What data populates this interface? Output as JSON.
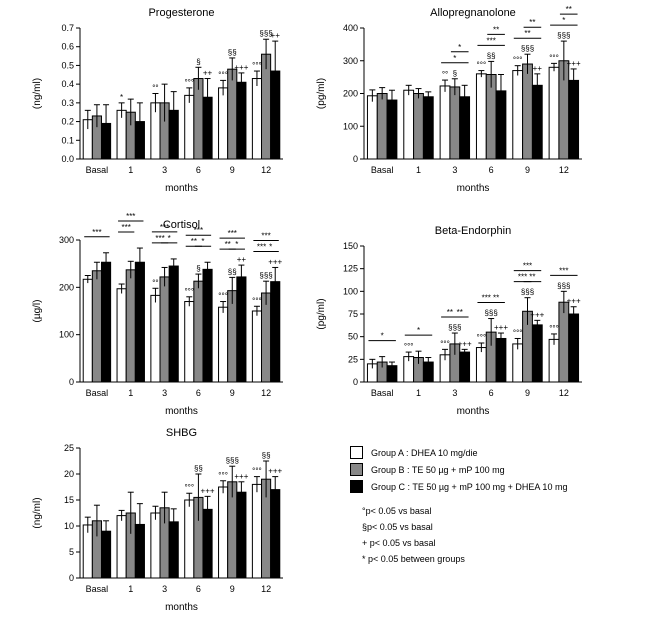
{
  "chart_data": [
    {
      "type": "bar",
      "id": "progesterone",
      "title": "Progesterone",
      "ylabel": "(ng/ml)",
      "xlabel": "months",
      "categories": [
        "Basal",
        "1",
        "3",
        "6",
        "9",
        "12"
      ],
      "ylim": [
        0,
        0.7
      ],
      "yticks": [
        "0.0",
        "0.1",
        "0.2",
        "0.3",
        "0.4",
        "0.5",
        "0.6",
        "0.7"
      ],
      "series": [
        {
          "name": "Group A",
          "values": [
            0.21,
            0.26,
            0.3,
            0.34,
            0.38,
            0.43
          ],
          "errors": [
            0.05,
            0.04,
            0.05,
            0.04,
            0.04,
            0.04
          ]
        },
        {
          "name": "Group B",
          "values": [
            0.23,
            0.25,
            0.3,
            0.43,
            0.48,
            0.56
          ],
          "errors": [
            0.06,
            0.07,
            0.1,
            0.06,
            0.06,
            0.08
          ]
        },
        {
          "name": "Group C",
          "values": [
            0.19,
            0.2,
            0.26,
            0.33,
            0.41,
            0.47
          ],
          "errors": [
            0.1,
            0.1,
            0.1,
            0.1,
            0.05,
            0.16
          ]
        }
      ],
      "annotations": [
        {
          "cat": 1,
          "bar": 0,
          "text": "*"
        },
        {
          "cat": 2,
          "bar": 0,
          "text": "°°"
        },
        {
          "cat": 3,
          "bar": 0,
          "text": "°°°"
        },
        {
          "cat": 3,
          "bar": 1,
          "text": "§"
        },
        {
          "cat": 3,
          "bar": 2,
          "text": "++"
        },
        {
          "cat": 4,
          "bar": 0,
          "text": "°°°"
        },
        {
          "cat": 4,
          "bar": 1,
          "text": "§§"
        },
        {
          "cat": 4,
          "bar": 2,
          "text": "+++"
        },
        {
          "cat": 5,
          "bar": 0,
          "text": "°°°"
        },
        {
          "cat": 5,
          "bar": 1,
          "text": "§§§"
        },
        {
          "cat": 5,
          "bar": 2,
          "text": "++"
        }
      ],
      "brackets": []
    },
    {
      "type": "bar",
      "id": "allopregnanolone",
      "title": "Allopregnanolone",
      "ylabel": "(pg/ml)",
      "xlabel": "months",
      "categories": [
        "Basal",
        "1",
        "3",
        "6",
        "9",
        "12"
      ],
      "ylim": [
        0,
        400
      ],
      "yticks": [
        "0",
        "100",
        "200",
        "300",
        "400"
      ],
      "series": [
        {
          "name": "Group A",
          "values": [
            193,
            210,
            223,
            260,
            270,
            280
          ],
          "errors": [
            18,
            15,
            18,
            10,
            15,
            12
          ]
        },
        {
          "name": "Group B",
          "values": [
            200,
            200,
            220,
            258,
            290,
            300
          ],
          "errors": [
            18,
            15,
            25,
            40,
            30,
            60
          ]
        },
        {
          "name": "Group C",
          "values": [
            180,
            190,
            190,
            208,
            225,
            240
          ],
          "errors": [
            30,
            15,
            35,
            50,
            35,
            35
          ]
        }
      ],
      "annotations": [
        {
          "cat": 2,
          "bar": 0,
          "text": "°°"
        },
        {
          "cat": 2,
          "bar": 1,
          "text": "§"
        },
        {
          "cat": 3,
          "bar": 0,
          "text": "°°°"
        },
        {
          "cat": 3,
          "bar": 1,
          "text": "§§"
        },
        {
          "cat": 4,
          "bar": 0,
          "text": "°°°"
        },
        {
          "cat": 4,
          "bar": 1,
          "text": "§§§"
        },
        {
          "cat": 4,
          "bar": 2,
          "text": "++"
        },
        {
          "cat": 5,
          "bar": 0,
          "text": "°°°"
        },
        {
          "cat": 5,
          "bar": 1,
          "text": "§§§"
        },
        {
          "cat": 5,
          "bar": 2,
          "text": "+++"
        }
      ],
      "brackets": [
        {
          "cat": 2,
          "from": 0,
          "to": 2,
          "level": 0,
          "text": "*"
        },
        {
          "cat": 2,
          "from": 1,
          "to": 2,
          "level": 1,
          "text": "*"
        },
        {
          "cat": 3,
          "from": 0,
          "to": 2,
          "level": 0,
          "text": "***"
        },
        {
          "cat": 3,
          "from": 1,
          "to": 2,
          "level": 1,
          "text": "**"
        },
        {
          "cat": 4,
          "from": 0,
          "to": 2,
          "level": 0,
          "text": "**"
        },
        {
          "cat": 4,
          "from": 1,
          "to": 2,
          "level": 1,
          "text": "**"
        },
        {
          "cat": 5,
          "from": 0,
          "to": 2,
          "level": 0,
          "text": "*"
        },
        {
          "cat": 5,
          "from": 1,
          "to": 2,
          "level": 1,
          "text": "**"
        }
      ]
    },
    {
      "type": "bar",
      "id": "cortisol",
      "title": "Cortisol",
      "ylabel": "(µg/l)",
      "xlabel": "months",
      "categories": [
        "Basal",
        "1",
        "3",
        "6",
        "9",
        "12"
      ],
      "ylim": [
        0,
        300
      ],
      "yticks": [
        "0",
        "100",
        "200",
        "300"
      ],
      "series": [
        {
          "name": "Group A",
          "values": [
            217,
            197,
            183,
            170,
            158,
            150
          ],
          "errors": [
            8,
            10,
            15,
            10,
            12,
            10
          ]
        },
        {
          "name": "Group B",
          "values": [
            235,
            237,
            222,
            213,
            193,
            188
          ],
          "errors": [
            18,
            18,
            20,
            15,
            28,
            25
          ]
        },
        {
          "name": "Group C",
          "values": [
            253,
            253,
            245,
            238,
            222,
            212
          ],
          "errors": [
            20,
            30,
            15,
            15,
            25,
            30
          ]
        }
      ],
      "annotations": [
        {
          "cat": 2,
          "bar": 0,
          "text": "°°"
        },
        {
          "cat": 3,
          "bar": 0,
          "text": "°°°"
        },
        {
          "cat": 3,
          "bar": 1,
          "text": "§"
        },
        {
          "cat": 4,
          "bar": 0,
          "text": "°°°"
        },
        {
          "cat": 4,
          "bar": 1,
          "text": "§§"
        },
        {
          "cat": 4,
          "bar": 2,
          "text": "++"
        },
        {
          "cat": 5,
          "bar": 0,
          "text": "°°°"
        },
        {
          "cat": 5,
          "bar": 1,
          "text": "§§§"
        },
        {
          "cat": 5,
          "bar": 2,
          "text": "+++"
        }
      ],
      "brackets": [
        {
          "cat": 0,
          "from": 0,
          "to": 2,
          "level": 0,
          "text": "***"
        },
        {
          "cat": 1,
          "from": 0,
          "to": 2,
          "level": 1,
          "text": "***"
        },
        {
          "cat": 1,
          "from": 0,
          "to": 1,
          "level": 0,
          "text": "***"
        },
        {
          "cat": 2,
          "from": 0,
          "to": 2,
          "level": 1,
          "text": "***"
        },
        {
          "cat": 2,
          "from": 0,
          "to": 1,
          "level": 0,
          "text": "***"
        },
        {
          "cat": 2,
          "from": 1,
          "to": 2,
          "level": 0,
          "text": "*"
        },
        {
          "cat": 3,
          "from": 0,
          "to": 2,
          "level": 1,
          "text": "***"
        },
        {
          "cat": 3,
          "from": 0,
          "to": 1,
          "level": 0,
          "text": "**"
        },
        {
          "cat": 3,
          "from": 1,
          "to": 2,
          "level": 0,
          "text": "*"
        },
        {
          "cat": 4,
          "from": 0,
          "to": 2,
          "level": 1,
          "text": "***"
        },
        {
          "cat": 4,
          "from": 0,
          "to": 1,
          "level": 0,
          "text": "**"
        },
        {
          "cat": 4,
          "from": 1,
          "to": 2,
          "level": 0,
          "text": "*"
        },
        {
          "cat": 5,
          "from": 0,
          "to": 2,
          "level": 1,
          "text": "***"
        },
        {
          "cat": 5,
          "from": 0,
          "to": 1,
          "level": 0,
          "text": "***"
        },
        {
          "cat": 5,
          "from": 1,
          "to": 2,
          "level": 0,
          "text": "*"
        }
      ]
    },
    {
      "type": "bar",
      "id": "beta-endorphin",
      "title": "Beta-Endorphin",
      "ylabel": "(pg/ml)",
      "xlabel": "months",
      "categories": [
        "Basal",
        "1",
        "3",
        "6",
        "9",
        "12"
      ],
      "ylim": [
        0,
        150
      ],
      "yticks": [
        "0",
        "25",
        "50",
        "75",
        "100",
        "125",
        "150"
      ],
      "series": [
        {
          "name": "Group A",
          "values": [
            20,
            28,
            30,
            38,
            42,
            47
          ],
          "errors": [
            5,
            5,
            6,
            5,
            6,
            6
          ]
        },
        {
          "name": "Group B",
          "values": [
            22,
            27,
            42,
            55,
            78,
            88
          ],
          "errors": [
            6,
            7,
            12,
            15,
            15,
            12
          ]
        },
        {
          "name": "Group C",
          "values": [
            18,
            22,
            33,
            48,
            63,
            75
          ],
          "errors": [
            4,
            5,
            3,
            6,
            5,
            8
          ]
        }
      ],
      "annotations": [
        {
          "cat": 1,
          "bar": 0,
          "text": "°°°"
        },
        {
          "cat": 2,
          "bar": 0,
          "text": "°°°"
        },
        {
          "cat": 2,
          "bar": 1,
          "text": "§§§"
        },
        {
          "cat": 2,
          "bar": 2,
          "text": "+++"
        },
        {
          "cat": 3,
          "bar": 0,
          "text": "°°°"
        },
        {
          "cat": 3,
          "bar": 1,
          "text": "§§§"
        },
        {
          "cat": 3,
          "bar": 2,
          "text": "+++"
        },
        {
          "cat": 4,
          "bar": 0,
          "text": "°°°"
        },
        {
          "cat": 4,
          "bar": 1,
          "text": "§§§"
        },
        {
          "cat": 4,
          "bar": 2,
          "text": "+++"
        },
        {
          "cat": 5,
          "bar": 0,
          "text": "°°°"
        },
        {
          "cat": 5,
          "bar": 1,
          "text": "§§§"
        },
        {
          "cat": 5,
          "bar": 2,
          "text": "+++"
        }
      ],
      "brackets": [
        {
          "cat": 0,
          "from": 0,
          "to": 2,
          "level": 0,
          "text": "*"
        },
        {
          "cat": 1,
          "from": 0,
          "to": 2,
          "level": 0,
          "text": "*"
        },
        {
          "cat": 2,
          "from": 0,
          "to": 1,
          "level": 0,
          "text": "**"
        },
        {
          "cat": 2,
          "from": 1,
          "to": 2,
          "level": 0,
          "text": "**"
        },
        {
          "cat": 3,
          "from": 0,
          "to": 1,
          "level": 0,
          "text": "***"
        },
        {
          "cat": 3,
          "from": 1,
          "to": 2,
          "level": 0,
          "text": "**"
        },
        {
          "cat": 4,
          "from": 0,
          "to": 2,
          "level": 1,
          "text": "***"
        },
        {
          "cat": 4,
          "from": 0,
          "to": 1,
          "level": 0,
          "text": "***"
        },
        {
          "cat": 4,
          "from": 1,
          "to": 2,
          "level": 0,
          "text": "**"
        },
        {
          "cat": 5,
          "from": 0,
          "to": 2,
          "level": 0,
          "text": "***"
        }
      ]
    },
    {
      "type": "bar",
      "id": "shbg",
      "title": "SHBG",
      "ylabel": "(ng/ml)",
      "xlabel": "months",
      "categories": [
        "Basal",
        "1",
        "3",
        "6",
        "9",
        "12"
      ],
      "ylim": [
        0,
        25
      ],
      "yticks": [
        "0",
        "5",
        "10",
        "15",
        "20",
        "25"
      ],
      "series": [
        {
          "name": "Group A",
          "values": [
            10.2,
            12.0,
            12.5,
            15.0,
            17.5,
            18.0
          ],
          "errors": [
            1.5,
            1.0,
            1.3,
            1.3,
            1.2,
            1.5
          ]
        },
        {
          "name": "Group B",
          "values": [
            11.0,
            12.5,
            13.5,
            15.5,
            18.5,
            19.0
          ],
          "errors": [
            3.0,
            4.0,
            3.0,
            4.5,
            3.0,
            3.5
          ]
        },
        {
          "name": "Group C",
          "values": [
            9.0,
            10.3,
            10.8,
            13.2,
            16.5,
            17.0
          ],
          "errors": [
            2.0,
            4.0,
            2.5,
            2.5,
            2.0,
            2.5
          ]
        }
      ],
      "annotations": [
        {
          "cat": 3,
          "bar": 0,
          "text": "°°°"
        },
        {
          "cat": 3,
          "bar": 1,
          "text": "§§"
        },
        {
          "cat": 3,
          "bar": 2,
          "text": "+++"
        },
        {
          "cat": 4,
          "bar": 0,
          "text": "°°°"
        },
        {
          "cat": 4,
          "bar": 1,
          "text": "§§§"
        },
        {
          "cat": 4,
          "bar": 2,
          "text": "+++"
        },
        {
          "cat": 5,
          "bar": 0,
          "text": "°°°"
        },
        {
          "cat": 5,
          "bar": 1,
          "text": "§§"
        },
        {
          "cat": 5,
          "bar": 2,
          "text": "+++"
        }
      ],
      "brackets": []
    }
  ],
  "colors": {
    "group_a": "#ffffff",
    "group_b": "#888888",
    "group_c": "#000000"
  },
  "legend": {
    "items": [
      {
        "label": "Group A : DHEA 10 mg/die",
        "color": "#ffffff"
      },
      {
        "label": "Group B : TE 50 µg + mP 100 mg",
        "color": "#888888"
      },
      {
        "label": "Group C : TE 50 µg + mP 100 mg + DHEA 10 mg",
        "color": "#000000"
      }
    ],
    "notes": [
      "°p< 0.05  vs basal",
      "§p< 0.05 vs basal",
      "+ p< 0.05 vs basal",
      "* p< 0.05 between groups"
    ]
  }
}
